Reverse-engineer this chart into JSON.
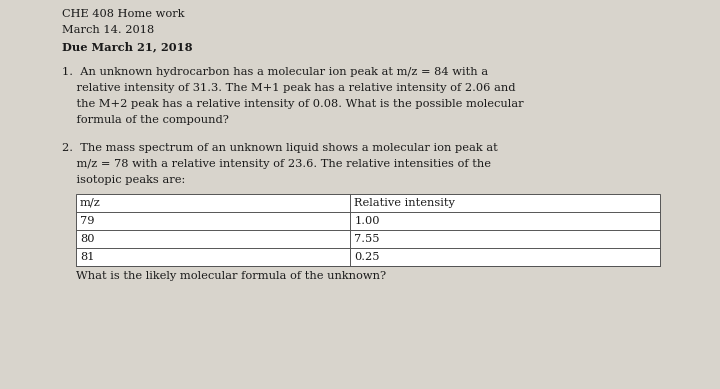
{
  "bg_color": "#d8d4cc",
  "text_color": "#1a1a1a",
  "title_line1": "CHE 408 Home work",
  "title_line2": "March 14. 2018",
  "title_line3": "Due March 21, 2018",
  "q1_lines": [
    "1.  An unknown hydrocarbon has a molecular ion peak at m/z = 84 with a",
    "    relative intensity of 31.3. The M+1 peak has a relative intensity of 2.06 and",
    "    the M+2 peak has a relative intensity of 0.08. What is the possible molecular",
    "    formula of the compound?"
  ],
  "q2_lines": [
    "2.  The mass spectrum of an unknown liquid shows a molecular ion peak at",
    "    m/z = 78 with a relative intensity of 23.6. The relative intensities of the",
    "    isotopic peaks are:"
  ],
  "table_headers": [
    "m/z",
    "Relative intensity"
  ],
  "table_rows": [
    [
      "79",
      "1.00"
    ],
    [
      "80",
      "7.55"
    ],
    [
      "81",
      "0.25"
    ]
  ],
  "q2_final": "What is the likely molecular formula of the unknown?",
  "font_size": 8.2,
  "font_family": "DejaVu Serif"
}
